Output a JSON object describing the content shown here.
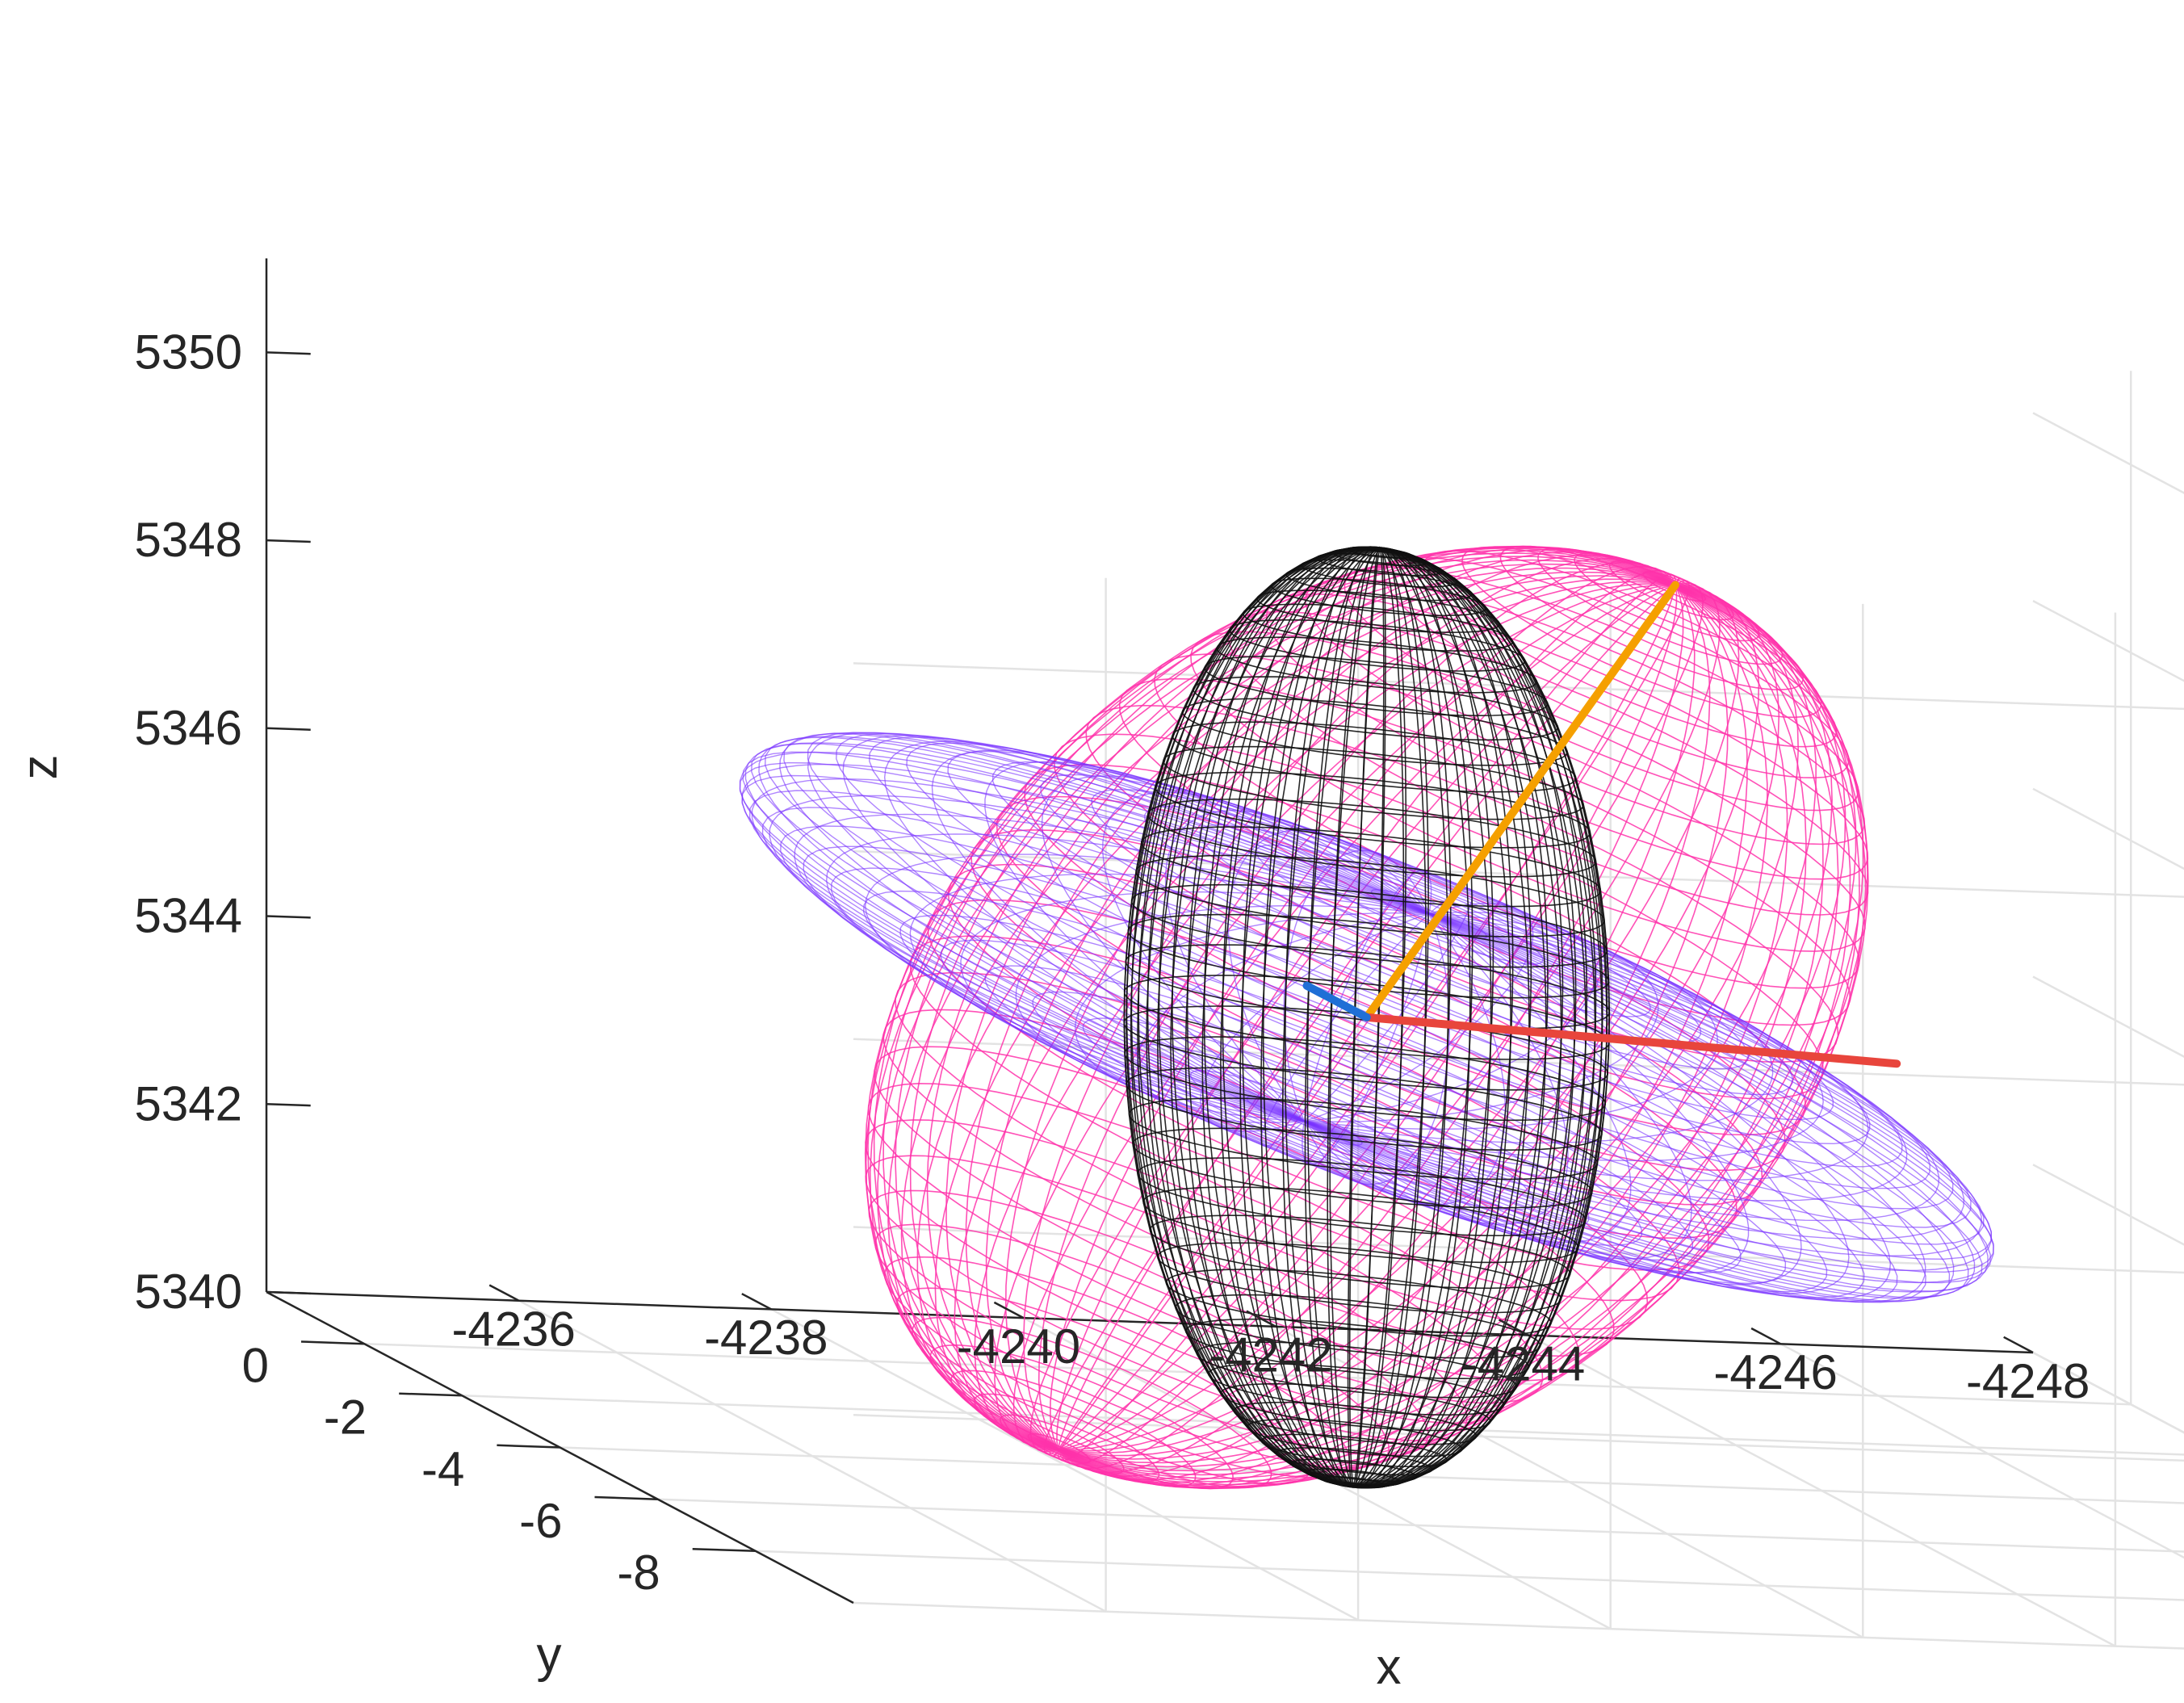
{
  "chart_data": {
    "type": "3d-ellipsoid-wireframe",
    "xlabel": "x",
    "ylabel": "y",
    "zlabel": "z",
    "xlim": [
      -4248,
      -4234
    ],
    "ylim": [
      -10,
      2
    ],
    "zlim": [
      5340,
      5351
    ],
    "grid": true,
    "x_ticks": [
      -4236,
      -4238,
      -4240,
      -4242,
      -4244,
      -4246,
      -4248
    ],
    "y_ticks": [
      -8,
      -6,
      -4,
      -2,
      0
    ],
    "z_ticks": [
      5340,
      5342,
      5344,
      5346,
      5348,
      5350
    ],
    "x_tick_labels": [
      "-4236",
      "-4238",
      "-4240",
      "-4242",
      "-4244",
      "-4246",
      "-4248"
    ],
    "y_tick_labels": [
      "-8",
      "-6",
      "-4",
      "-2",
      "0"
    ],
    "z_tick_labels": [
      "5340",
      "5342",
      "5344",
      "5346",
      "5348",
      "5350"
    ],
    "center": {
      "x": -4240.2,
      "y": -4.5,
      "z": 5345.0
    },
    "ellipsoids": [
      {
        "color": "#ff33aa",
        "semi_axes_approx": [
          3.2,
          3.0,
          5.6
        ],
        "orientation": "tilted, major axis toward +z"
      },
      {
        "color": "#7a33ff",
        "semi_axes_approx": [
          5.0,
          3.2,
          1.3
        ],
        "orientation": "tilted, flattened along z"
      },
      {
        "color": "#111111",
        "semi_axes_approx": [
          1.8,
          1.5,
          5.0
        ],
        "orientation": "vertical, elongated along z"
      }
    ],
    "principal_axes": [
      {
        "color": "#f5a000",
        "direction": "toward +z, tilted toward -x"
      },
      {
        "color": "#e8453c",
        "direction": "toward -x"
      },
      {
        "color": "#1f6fd6",
        "direction": "toward +y"
      }
    ]
  }
}
